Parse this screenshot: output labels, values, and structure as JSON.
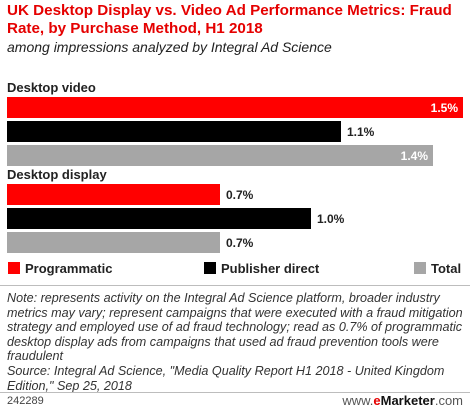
{
  "header": {
    "title": "UK Desktop Display vs. Video Ad Performance Metrics: Fraud Rate, by Purchase Method, H1 2018",
    "subtitle": "among impressions analyzed by Integral Ad Science"
  },
  "chart_data": {
    "type": "bar",
    "orientation": "horizontal",
    "groups": [
      "Desktop video",
      "Desktop display"
    ],
    "series": [
      {
        "name": "Programmatic",
        "color": "#ff0000",
        "values": [
          1.5,
          0.7
        ],
        "labels": [
          "1.5%",
          "0.7%"
        ]
      },
      {
        "name": "Publisher direct",
        "color": "#000000",
        "values": [
          1.1,
          1.0
        ],
        "labels": [
          "1.1%",
          "1.0%"
        ]
      },
      {
        "name": "Total",
        "color": "#a6a6a6",
        "values": [
          1.4,
          0.7
        ],
        "labels": [
          "1.4%",
          "0.7%"
        ]
      }
    ],
    "xlim": [
      0,
      1.5
    ],
    "grid": false,
    "legend_placement": "bottom"
  },
  "footer": {
    "note": "Note: represents activity on the Integral Ad Science platform, broader industry metrics may vary; represent campaigns that were executed with a fraud mitigation strategy and employed use of ad fraud technology; read as 0.7% of programmatic desktop display ads from campaigns that used ad fraud prevention tools were fraudulent",
    "source": "Source: Integral Ad Science, \"Media Quality Report H1 2018 - United Kingdom Edition,\" Sep 25, 2018",
    "chart_id": "242289",
    "brand": {
      "prefix": "www.",
      "mark": "e",
      "name": "Marketer",
      "suffix": ".com"
    }
  }
}
